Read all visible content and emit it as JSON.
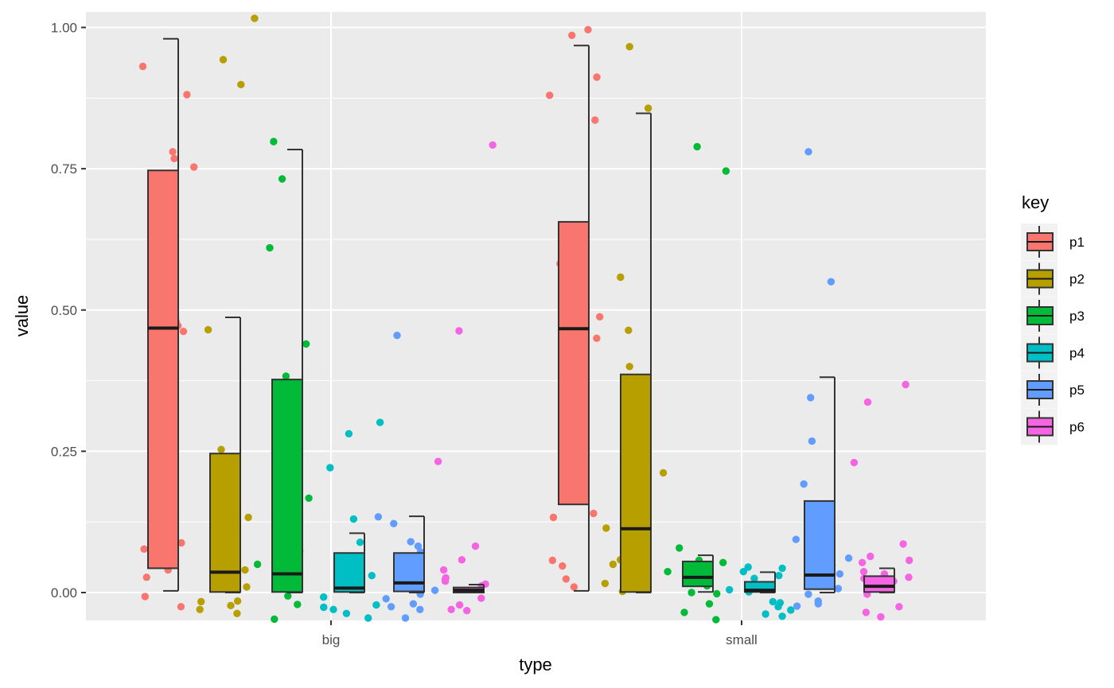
{
  "chart_data": {
    "type": "boxplot",
    "xlabel": "type",
    "ylabel": "value",
    "categories": [
      "big",
      "small"
    ],
    "ylim": [
      -0.05,
      1.03
    ],
    "yticks": [
      0.0,
      0.25,
      0.5,
      0.75,
      1.0
    ],
    "ytick_labels": [
      "0.00",
      "0.25",
      "0.50",
      "0.75",
      "1.00"
    ],
    "legend": {
      "title": "key",
      "position": "right"
    },
    "grid": true,
    "series": [
      {
        "name": "p1",
        "color": "#F8766D",
        "boxes": [
          {
            "category": "big",
            "whisker_low": 0.003,
            "q1": 0.043,
            "median": 0.468,
            "q3": 0.747,
            "whisker_high": 0.98
          },
          {
            "category": "small",
            "whisker_low": 0.003,
            "q1": 0.156,
            "median": 0.467,
            "q3": 0.656,
            "whisker_high": 0.968
          }
        ],
        "points": [
          {
            "category": "big",
            "values": [
              0.78,
              0.74,
              0.737,
              0.753,
              0.768,
              0.722,
              0.931,
              0.881,
              0.48,
              0.462,
              0.472,
              0.14,
              0.088,
              0.077,
              0.04,
              0.027,
              -0.007,
              -0.025
            ]
          },
          {
            "category": "small",
            "values": [
              0.912,
              0.836,
              0.88,
              0.986,
              0.996,
              0.59,
              0.582,
              0.568,
              0.488,
              0.45,
              0.422,
              0.325,
              0.14,
              0.133,
              0.057,
              0.047,
              0.024,
              0.01
            ]
          }
        ]
      },
      {
        "name": "p2",
        "color": "#B79F00",
        "boxes": [
          {
            "category": "big",
            "whisker_low": 0.0,
            "q1": 0.001,
            "median": 0.036,
            "q3": 0.246,
            "whisker_high": 0.487
          },
          {
            "category": "small",
            "whisker_low": 0.0,
            "q1": 0.001,
            "median": 0.113,
            "q3": 0.386,
            "whisker_high": 0.848
          }
        ],
        "points": [
          {
            "category": "big",
            "values": [
              1.016,
              0.943,
              0.899,
              0.465,
              0.253,
              0.133,
              0.04,
              0.035,
              0.032,
              0.01,
              -0.015,
              -0.016,
              -0.023,
              -0.03,
              -0.037
            ]
          },
          {
            "category": "small",
            "values": [
              0.966,
              0.857,
              0.558,
              0.464,
              0.4,
              0.345,
              0.212,
              0.151,
              0.114,
              0.058,
              0.05,
              0.047,
              0.016,
              0.002
            ]
          }
        ]
      },
      {
        "name": "p3",
        "color": "#00BA38",
        "boxes": [
          {
            "category": "big",
            "whisker_low": 0.0,
            "q1": 0.001,
            "median": 0.033,
            "q3": 0.377,
            "whisker_high": 0.784
          },
          {
            "category": "small",
            "whisker_low": 0.001,
            "q1": 0.011,
            "median": 0.027,
            "q3": 0.055,
            "whisker_high": 0.066
          }
        ],
        "points": [
          {
            "category": "big",
            "values": [
              0.798,
              0.732,
              0.61,
              0.44,
              0.383,
              0.359,
              0.167,
              0.085,
              0.073,
              0.05,
              0.024,
              0.015,
              -0.006,
              -0.021,
              -0.047
            ]
          },
          {
            "category": "small",
            "values": [
              0.789,
              0.746,
              0.079,
              0.057,
              0.053,
              0.04,
              0.037,
              0.02,
              0.012,
              0.0,
              -0.002,
              -0.02,
              -0.035,
              -0.048
            ]
          }
        ]
      },
      {
        "name": "p4",
        "color": "#00BFC4",
        "boxes": [
          {
            "category": "big",
            "whisker_low": 0.0,
            "q1": 0.001,
            "median": 0.008,
            "q3": 0.07,
            "whisker_high": 0.105
          },
          {
            "category": "small",
            "whisker_low": 0.0,
            "q1": 0.001,
            "median": 0.004,
            "q3": 0.019,
            "whisker_high": 0.036
          }
        ],
        "points": [
          {
            "category": "big",
            "values": [
              0.301,
              0.281,
              0.221,
              0.13,
              0.089,
              0.03,
              0.013,
              0.005,
              -0.008,
              -0.022,
              -0.026,
              -0.03,
              -0.037,
              -0.045
            ]
          },
          {
            "category": "small",
            "values": [
              0.045,
              0.043,
              0.037,
              0.03,
              0.025,
              0.012,
              0.005,
              0.001,
              -0.016,
              -0.018,
              -0.025,
              -0.031,
              -0.038,
              -0.042
            ]
          }
        ]
      },
      {
        "name": "p5",
        "color": "#619CFF",
        "boxes": [
          {
            "category": "big",
            "whisker_low": 0.0,
            "q1": 0.002,
            "median": 0.017,
            "q3": 0.07,
            "whisker_high": 0.135
          },
          {
            "category": "small",
            "whisker_low": 0.0,
            "q1": 0.006,
            "median": 0.031,
            "q3": 0.162,
            "whisker_high": 0.381
          }
        ],
        "points": [
          {
            "category": "big",
            "values": [
              0.455,
              0.134,
              0.122,
              0.09,
              0.082,
              0.072,
              0.046,
              0.037,
              0.028,
              0.004,
              -0.003,
              -0.011,
              -0.02,
              -0.025,
              -0.03,
              -0.045
            ]
          },
          {
            "category": "small",
            "values": [
              0.78,
              0.55,
              0.345,
              0.268,
              0.192,
              0.116,
              0.094,
              0.067,
              0.061,
              0.048,
              0.039,
              0.033,
              0.007,
              -0.003,
              -0.015,
              -0.02,
              -0.024
            ]
          }
        ]
      },
      {
        "name": "p6",
        "color": "#F564E3",
        "boxes": [
          {
            "category": "big",
            "whisker_low": 0.0,
            "q1": 0.0,
            "median": 0.004,
            "q3": 0.009,
            "whisker_high": 0.014
          },
          {
            "category": "small",
            "whisker_low": 0.0,
            "q1": 0.001,
            "median": 0.011,
            "q3": 0.029,
            "whisker_high": 0.043
          }
        ],
        "points": [
          {
            "category": "big",
            "values": [
              0.792,
              0.463,
              0.232,
              0.082,
              0.058,
              0.04,
              0.026,
              0.023,
              0.02,
              0.015,
              0.012,
              -0.01,
              -0.022,
              -0.03,
              -0.032
            ]
          },
          {
            "category": "small",
            "values": [
              0.368,
              0.337,
              0.23,
              0.086,
              0.064,
              0.057,
              0.053,
              0.037,
              0.033,
              0.027,
              0.025,
              0.02,
              -0.003,
              -0.025,
              -0.035,
              -0.043
            ]
          }
        ]
      }
    ]
  }
}
